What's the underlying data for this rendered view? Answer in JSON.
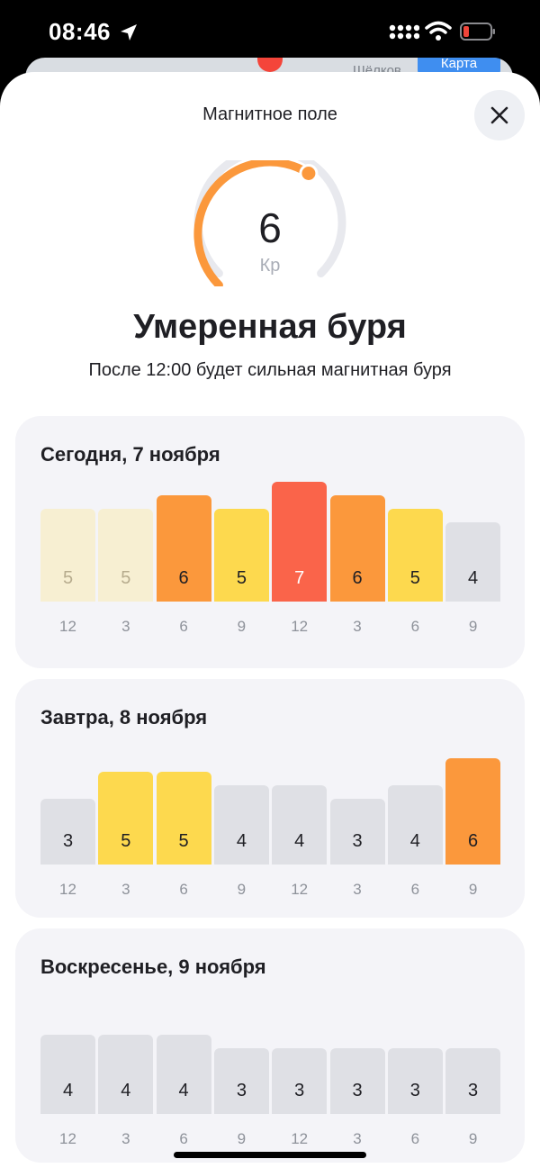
{
  "status": {
    "time": "08:46"
  },
  "background": {
    "town": "Шёлков",
    "map_button": "Карта"
  },
  "header": {
    "title": "Магнитное поле"
  },
  "gauge": {
    "value": "6",
    "unit": "Кр",
    "fill_fraction": 0.62
  },
  "headline": "Умеренная буря",
  "subline": "После 12:00 будет сильная магнитная буря",
  "colors": {
    "1-4": "#dfe0e5",
    "5": "#fdd94e",
    "6": "#fb983c",
    "7": "#fa644a",
    "past": "#f7efd2"
  },
  "days": [
    {
      "title": "Сегодня, 7 ноября",
      "bars": [
        {
          "hour": "12",
          "value": 5,
          "past": true
        },
        {
          "hour": "3",
          "value": 5,
          "past": true
        },
        {
          "hour": "6",
          "value": 6
        },
        {
          "hour": "9",
          "value": 5
        },
        {
          "hour": "12",
          "value": 7
        },
        {
          "hour": "3",
          "value": 6
        },
        {
          "hour": "6",
          "value": 5
        },
        {
          "hour": "9",
          "value": 4
        }
      ]
    },
    {
      "title": "Завтра, 8 ноября",
      "bars": [
        {
          "hour": "12",
          "value": 3
        },
        {
          "hour": "3",
          "value": 5
        },
        {
          "hour": "6",
          "value": 5
        },
        {
          "hour": "9",
          "value": 4
        },
        {
          "hour": "12",
          "value": 4
        },
        {
          "hour": "3",
          "value": 3
        },
        {
          "hour": "6",
          "value": 4
        },
        {
          "hour": "9",
          "value": 6
        }
      ]
    },
    {
      "title": "Воскресенье, 9 ноября",
      "bars": [
        {
          "hour": "12",
          "value": 4
        },
        {
          "hour": "3",
          "value": 4
        },
        {
          "hour": "6",
          "value": 4
        },
        {
          "hour": "9",
          "value": 3
        },
        {
          "hour": "12",
          "value": 3
        },
        {
          "hour": "3",
          "value": 3
        },
        {
          "hour": "6",
          "value": 3
        },
        {
          "hour": "9",
          "value": 3
        }
      ]
    }
  ]
}
